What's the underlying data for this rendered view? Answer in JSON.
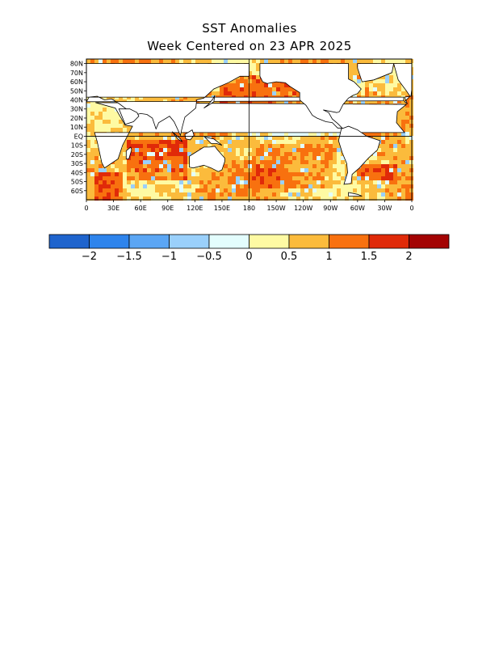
{
  "title": "SST Anomalies",
  "subtitle": "Week Centered on 23 APR 2025",
  "map": {
    "lat_labels": [
      "80N",
      "70N",
      "60N",
      "50N",
      "40N",
      "30N",
      "20N",
      "10N",
      "EQ",
      "10S",
      "20S",
      "30S",
      "40S",
      "50S",
      "60S"
    ],
    "lon_labels": [
      "0",
      "30E",
      "60E",
      "90E",
      "120E",
      "150E",
      "180",
      "150W",
      "120W",
      "90W",
      "60W",
      "30W",
      "0"
    ],
    "land_color": "#ffffff",
    "coastline_color": "#000000"
  },
  "colorbar": {
    "colors": [
      "#1f64cd",
      "#2e84ec",
      "#5ba6f4",
      "#9ad0fb",
      "#e3fdfd",
      "#fefaa3",
      "#fbbb3c",
      "#f8710f",
      "#e02a09",
      "#a30303"
    ],
    "tick_labels": [
      "−2",
      "−1.5",
      "−1",
      "−0.5",
      "0",
      "0.5",
      "1",
      "1.5",
      "2"
    ]
  }
}
